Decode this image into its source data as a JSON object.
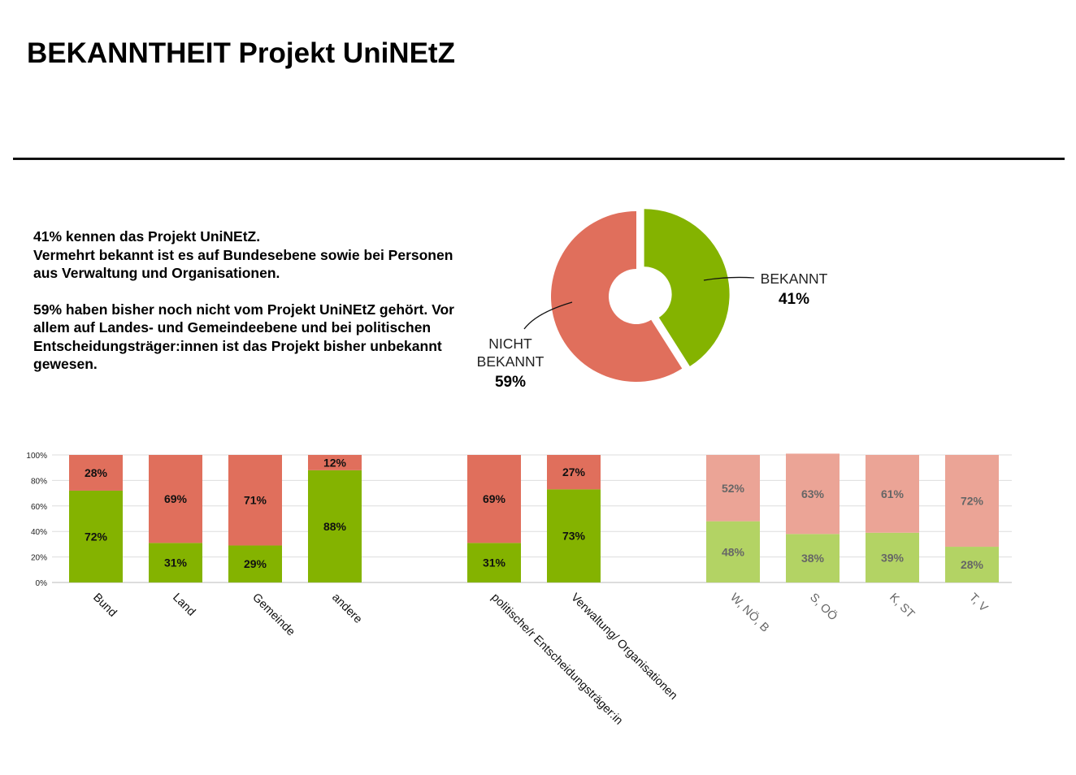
{
  "page": {
    "title": "BEKANNTHEIT Projekt UniNEtZ",
    "summary": [
      "41% kennen das Projekt UniNEtZ.\nVermehrt bekannt ist es auf Bundesebene sowie bei Personen aus Verwaltung und Organisationen.",
      "59% haben bisher noch nicht vom Projekt UniNEtZ gehört. Vor allem auf Landes- und Gemeindeebene und bei politischen Entscheidungsträger:innen ist das Projekt bisher unbekannt gewesen."
    ]
  },
  "colors": {
    "known": "#84b300",
    "unknown": "#e06f5c",
    "known_light": "#b3d364",
    "unknown_light": "#eba496"
  },
  "chart_data": [
    {
      "type": "pie",
      "variant": "donut",
      "labels": [
        "BEKANNT",
        "NICHT BEKANNT"
      ],
      "values": [
        41,
        59
      ],
      "value_labels": [
        "41%",
        "59%"
      ],
      "colors": [
        "#84b300",
        "#e06f5c"
      ]
    },
    {
      "type": "bar",
      "stacked": true,
      "ylim": [
        0,
        100
      ],
      "yticks": [
        "0%",
        "20%",
        "40%",
        "60%",
        "80%",
        "100%"
      ],
      "grid": true,
      "categories": [
        "Bund",
        "Land",
        "Gemeinde",
        "andere",
        "politische/r Entscheidungsträger:in",
        "Verwaltung/ Organisationen",
        "W, NÖ, B",
        "S, OÖ",
        "K, ST",
        "T, V"
      ],
      "groups": [
        [
          0,
          1,
          2,
          3
        ],
        [
          4,
          5
        ],
        [
          6,
          7,
          8,
          9
        ]
      ],
      "faded_categories": [
        6,
        7,
        8,
        9
      ],
      "series": [
        {
          "values": [
            72,
            31,
            29,
            88,
            31,
            73,
            48,
            38,
            39,
            28
          ],
          "labels": [
            "72%",
            "31%",
            "29%",
            "88%",
            "31%",
            "73%",
            "48%",
            "38%",
            "39%",
            "28%"
          ]
        },
        {
          "values": [
            28,
            69,
            71,
            12,
            69,
            27,
            52,
            63,
            61,
            72
          ],
          "labels": [
            "28%",
            "69%",
            "71%",
            "12%",
            "69%",
            "27%",
            "52%",
            "63%",
            "61%",
            "72%"
          ]
        }
      ]
    }
  ]
}
